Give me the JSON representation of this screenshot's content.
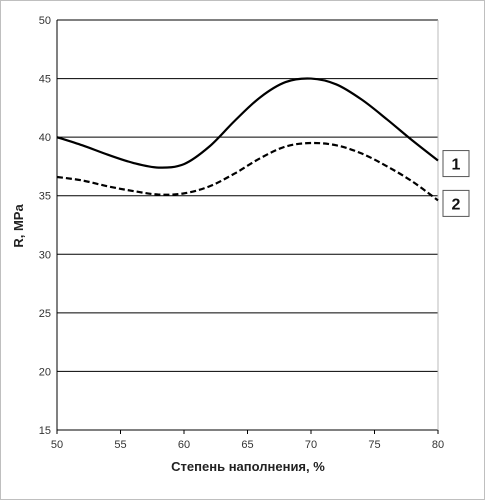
{
  "chart_data": {
    "type": "line",
    "xlabel": "Степень наполнения, %",
    "ylabel": "R, MPa",
    "xlim": [
      50,
      80
    ],
    "ylim": [
      15,
      50
    ],
    "x_ticks": [
      50,
      55,
      60,
      65,
      70,
      75,
      80
    ],
    "y_ticks": [
      15,
      20,
      25,
      30,
      35,
      40,
      45,
      50
    ],
    "grid": "horizontal",
    "legend_placement": "right",
    "series": [
      {
        "name": "1",
        "line_style": "solid",
        "color": "#000000",
        "x": [
          50,
          52,
          54,
          56,
          58,
          60,
          62,
          64,
          66,
          68,
          70,
          72,
          74,
          76,
          78,
          80
        ],
        "y": [
          40.0,
          39.3,
          38.5,
          37.8,
          37.4,
          37.7,
          39.2,
          41.4,
          43.4,
          44.7,
          45.0,
          44.5,
          43.2,
          41.5,
          39.7,
          38.0
        ]
      },
      {
        "name": "2",
        "line_style": "dashed",
        "color": "#000000",
        "x": [
          50,
          52,
          54,
          56,
          58,
          60,
          62,
          64,
          66,
          68,
          70,
          72,
          74,
          76,
          78,
          80
        ],
        "y": [
          36.6,
          36.3,
          35.8,
          35.4,
          35.1,
          35.2,
          35.8,
          36.9,
          38.2,
          39.2,
          39.5,
          39.3,
          38.6,
          37.5,
          36.2,
          34.6
        ]
      }
    ]
  }
}
